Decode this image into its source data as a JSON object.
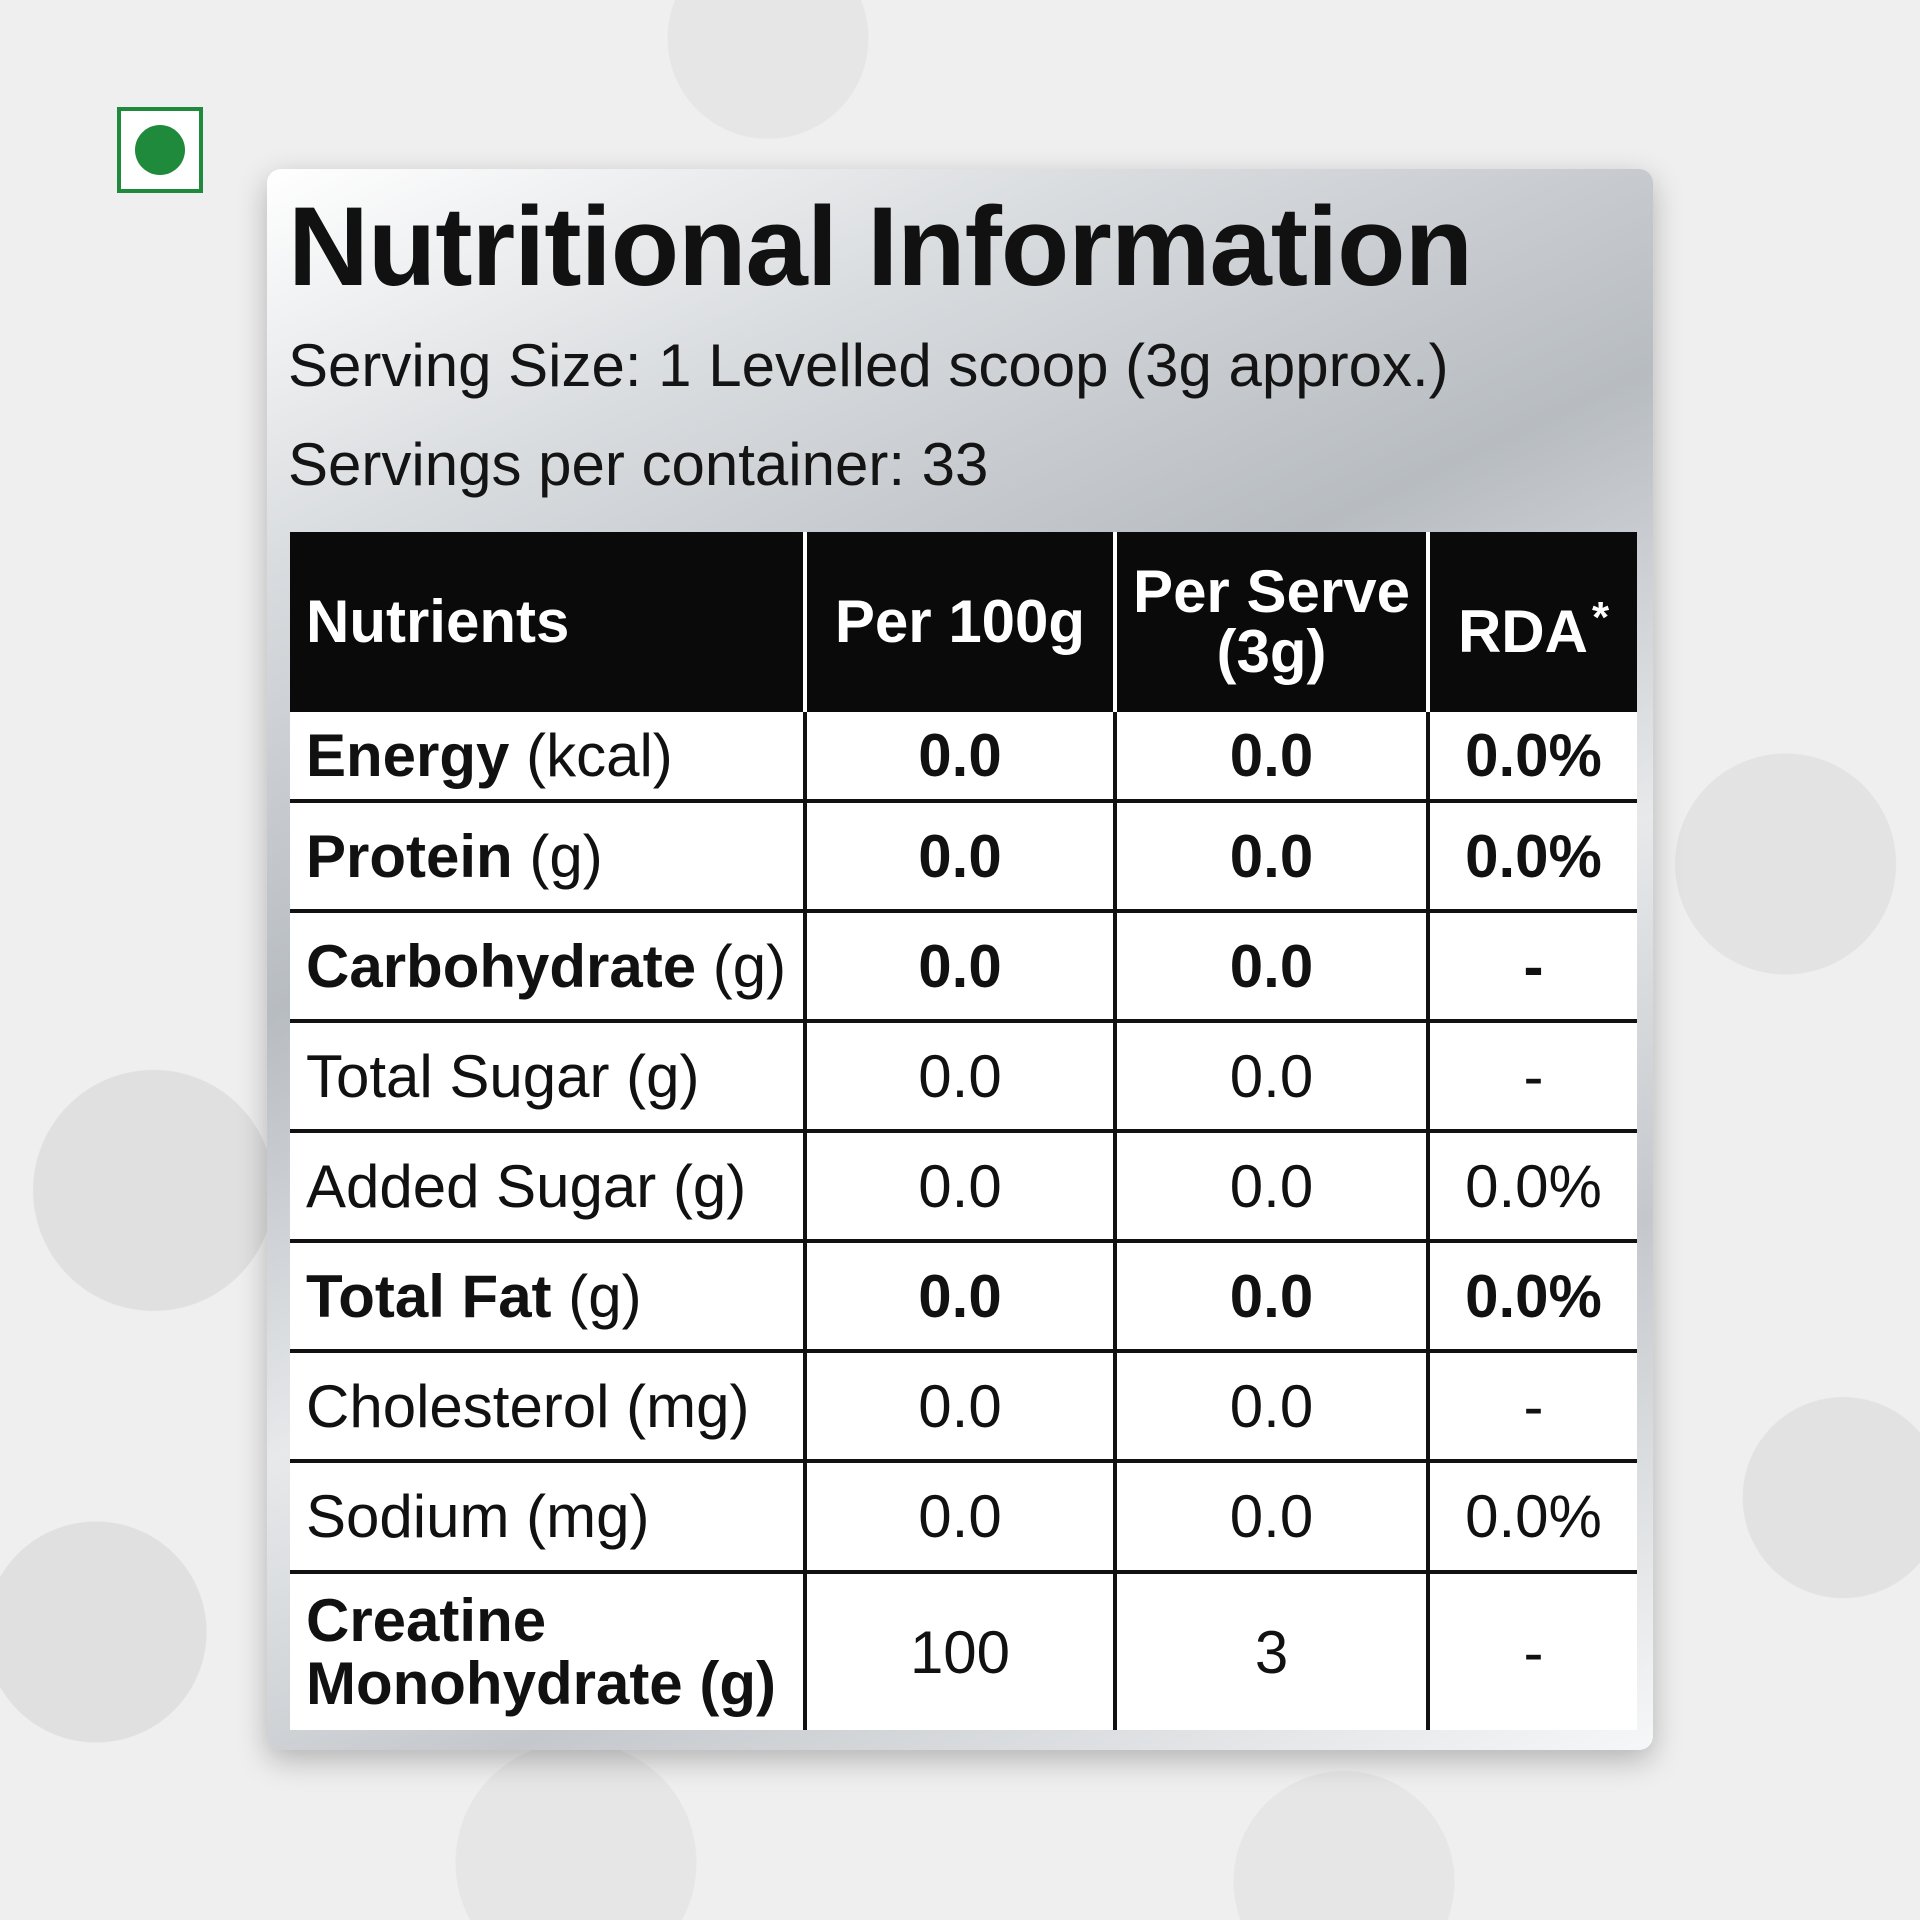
{
  "title": "Nutritional Information",
  "serving_size": "Serving Size: 1 Levelled scoop (3g approx.)",
  "servings_per_container": "Servings per container: 33",
  "veg_mark_color": "#1f8a3b",
  "table": {
    "headers": {
      "nutrients": "Nutrients",
      "per_100g": "Per 100g",
      "per_serve_line1": "Per Serve",
      "per_serve_line2": "(3g)",
      "rda": "RDA",
      "rda_mark": "*"
    },
    "rows": [
      {
        "name": "Energy",
        "unit": "(kcal)",
        "per100": "0.0",
        "perserve": "0.0",
        "rda": "0.0%"
      },
      {
        "name": "Protein",
        "unit": "(g)",
        "per100": "0.0",
        "perserve": "0.0",
        "rda": "0.0%"
      },
      {
        "name": "Carbohydrate",
        "unit": "(g)",
        "per100": "0.0",
        "perserve": "0.0",
        "rda": "-"
      },
      {
        "name": "Total Sugar (g)",
        "per100": "0.0",
        "perserve": "0.0",
        "rda": "-"
      },
      {
        "name": "Added Sugar (g)",
        "per100": "0.0",
        "perserve": "0.0",
        "rda": "0.0%"
      },
      {
        "name": "Total Fat",
        "unit": "(g)",
        "per100": "0.0",
        "perserve": "0.0",
        "rda": "0.0%"
      },
      {
        "name": "Cholesterol (mg)",
        "per100": "0.0",
        "perserve": "0.0",
        "rda": "-"
      },
      {
        "name": "Sodium (mg)",
        "per100": "0.0",
        "perserve": "0.0",
        "rda": "0.0%"
      },
      {
        "name_line1": "Creatine",
        "name_line2": "Monohydrate (g)",
        "per100": "100",
        "perserve": "3",
        "rda": "-"
      }
    ]
  }
}
